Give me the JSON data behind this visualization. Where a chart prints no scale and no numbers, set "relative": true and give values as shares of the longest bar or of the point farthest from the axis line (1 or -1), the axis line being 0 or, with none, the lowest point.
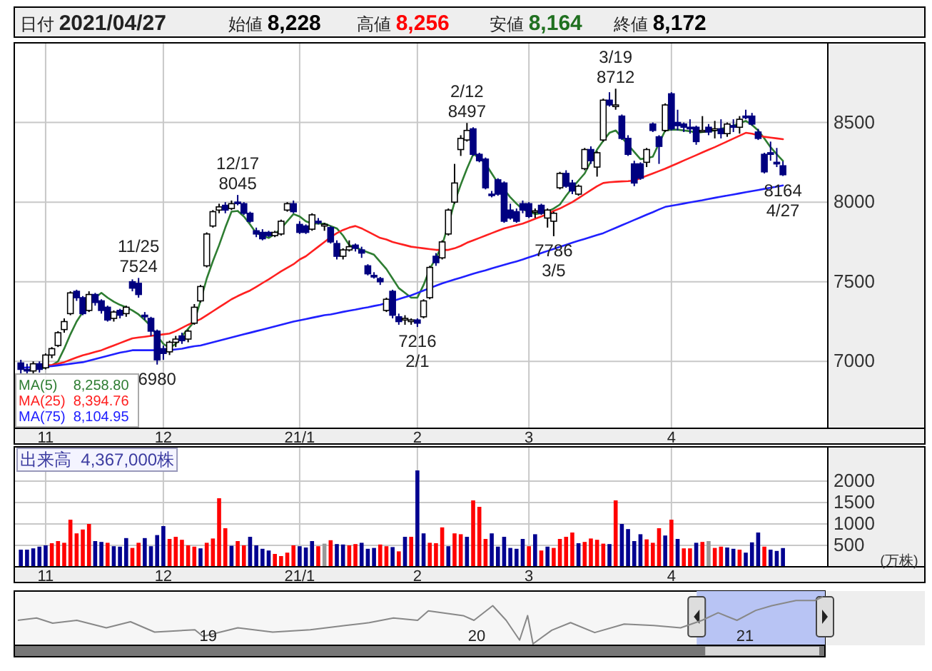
{
  "chart_data": [
    {
      "type": "candlestick",
      "annotations": [
        "日付 2021/04/27",
        "始値 8,228",
        "高値 8,256",
        "安値 8,164",
        "終値 8,172",
        {
          "text": "11/25\n7524",
          "y": 7524
        },
        {
          "text": "6980",
          "y": 6980
        },
        {
          "text": "12/17\n8045",
          "y": 8045
        },
        {
          "text": "7216\n2/1",
          "y": 7216
        },
        {
          "text": "2/12\n8497",
          "y": 8497
        },
        {
          "text": "7786\n3/5",
          "y": 7786
        },
        {
          "text": "3/19\n8712",
          "y": 8712
        },
        {
          "text": "8164\n4/27",
          "y": 8164
        }
      ],
      "categories": [
        null,
        null,
        null,
        null,
        "11",
        null,
        null,
        null,
        null,
        null,
        null,
        null,
        null,
        null,
        null,
        null,
        null,
        null,
        null,
        null,
        null,
        null,
        null,
        "12",
        null,
        null,
        null,
        null,
        null,
        null,
        null,
        null,
        null,
        null,
        null,
        null,
        null,
        null,
        null,
        null,
        null,
        null,
        null,
        null,
        null,
        "21/1",
        null,
        null,
        null,
        null,
        null,
        null,
        null,
        null,
        null,
        null,
        null,
        null,
        null,
        null,
        null,
        null,
        null,
        null,
        "2",
        null,
        null,
        null,
        null,
        null,
        null,
        null,
        null,
        null,
        null,
        null,
        null,
        null,
        null,
        null,
        null,
        null,
        "3",
        null,
        null,
        null,
        null,
        null,
        null,
        null,
        null,
        null,
        null,
        null,
        null,
        null,
        null,
        null,
        null,
        null,
        null,
        null,
        null,
        null,
        null,
        "4",
        null,
        null,
        null,
        null,
        null,
        null,
        null,
        null,
        null,
        null,
        null,
        null,
        null,
        null,
        null,
        null,
        null,
        null
      ],
      "ohlc": [
        [
          6990,
          7010,
          6925,
          6950
        ],
        [
          6950,
          6985,
          6920,
          6940
        ],
        [
          6940,
          7000,
          6925,
          6985
        ],
        [
          6985,
          7000,
          6930,
          6950
        ],
        [
          6960,
          7050,
          6950,
          7040
        ],
        [
          7040,
          7090,
          7020,
          7080
        ],
        [
          7100,
          7190,
          7090,
          7180
        ],
        [
          7200,
          7270,
          7180,
          7250
        ],
        [
          7300,
          7440,
          7290,
          7430
        ],
        [
          7440,
          7450,
          7380,
          7400
        ],
        [
          7400,
          7410,
          7290,
          7300
        ],
        [
          7320,
          7440,
          7310,
          7420
        ],
        [
          7420,
          7430,
          7350,
          7370
        ],
        [
          7380,
          7390,
          7300,
          7320
        ],
        [
          7340,
          7350,
          7250,
          7260
        ],
        [
          7270,
          7320,
          7250,
          7310
        ],
        [
          7320,
          7330,
          7270,
          7290
        ],
        [
          7300,
          7350,
          7280,
          7340
        ],
        [
          7500,
          7515,
          7440,
          7460
        ],
        [
          7490,
          7524,
          7400,
          7420
        ],
        [
          7290,
          7310,
          7260,
          7280
        ],
        [
          7270,
          7280,
          7160,
          7190
        ],
        [
          7190,
          7200,
          6980,
          7010
        ],
        [
          7080,
          7100,
          7010,
          7050
        ],
        [
          7060,
          7130,
          7040,
          7120
        ],
        [
          7120,
          7160,
          7090,
          7140
        ],
        [
          7160,
          7180,
          7110,
          7130
        ],
        [
          7140,
          7200,
          7120,
          7190
        ],
        [
          7240,
          7360,
          7230,
          7340
        ],
        [
          7380,
          7480,
          7370,
          7470
        ],
        [
          7600,
          7810,
          7590,
          7800
        ],
        [
          7850,
          7950,
          7840,
          7940
        ],
        [
          7950,
          7990,
          7930,
          7970
        ],
        [
          7980,
          8000,
          7930,
          7950
        ],
        [
          7960,
          8010,
          7950,
          7990
        ],
        [
          8000,
          8045,
          7980,
          7995
        ],
        [
          7990,
          8000,
          7920,
          7930
        ],
        [
          7930,
          7940,
          7870,
          7880
        ],
        [
          7820,
          7840,
          7780,
          7800
        ],
        [
          7810,
          7830,
          7760,
          7770
        ],
        [
          7810,
          7820,
          7780,
          7790
        ],
        [
          7790,
          7820,
          7780,
          7810
        ],
        [
          7800,
          7890,
          7790,
          7880
        ],
        [
          7950,
          8000,
          7940,
          7990
        ],
        [
          7990,
          8010,
          7930,
          7940
        ],
        [
          7860,
          7880,
          7800,
          7810
        ],
        [
          7850,
          7860,
          7800,
          7810
        ],
        [
          7830,
          7930,
          7820,
          7920
        ],
        [
          7880,
          7900,
          7860,
          7870
        ],
        [
          7850,
          7870,
          7820,
          7860
        ],
        [
          7840,
          7850,
          7740,
          7750
        ],
        [
          7740,
          7760,
          7640,
          7660
        ],
        [
          7660,
          7710,
          7640,
          7700
        ],
        [
          7700,
          7760,
          7690,
          7720
        ],
        [
          7730,
          7740,
          7690,
          7710
        ],
        [
          7700,
          7720,
          7650,
          7680
        ],
        [
          7600,
          7610,
          7540,
          7550
        ],
        [
          7540,
          7560,
          7520,
          7530
        ],
        [
          7520,
          7530,
          7480,
          7500
        ],
        [
          7320,
          7400,
          7310,
          7390
        ],
        [
          7440,
          7450,
          7270,
          7290
        ],
        [
          7280,
          7300,
          7230,
          7250
        ],
        [
          7260,
          7290,
          7230,
          7270
        ],
        [
          7250,
          7270,
          7230,
          7260
        ],
        [
          7260,
          7270,
          7216,
          7240
        ],
        [
          7280,
          7390,
          7270,
          7380
        ],
        [
          7400,
          7600,
          7390,
          7590
        ],
        [
          7660,
          7680,
          7600,
          7620
        ],
        [
          7650,
          7760,
          7640,
          7750
        ],
        [
          7800,
          7960,
          7790,
          7950
        ],
        [
          8000,
          8240,
          7990,
          8120
        ],
        [
          8330,
          8420,
          8290,
          8400
        ],
        [
          8390,
          8497,
          8380,
          8450
        ],
        [
          8460,
          8470,
          8290,
          8300
        ],
        [
          8300,
          8310,
          8250,
          8260
        ],
        [
          8270,
          8280,
          8080,
          8090
        ],
        [
          8050,
          8070,
          8030,
          8045
        ],
        [
          8140,
          8150,
          8040,
          8050
        ],
        [
          8120,
          8130,
          7870,
          7880
        ],
        [
          7950,
          7990,
          7890,
          7900
        ],
        [
          7940,
          7960,
          7870,
          7880
        ],
        [
          7990,
          8010,
          7930,
          7950
        ],
        [
          7990,
          8000,
          7900,
          7910
        ],
        [
          7940,
          7960,
          7900,
          7945
        ],
        [
          7980,
          7990,
          7920,
          7930
        ],
        [
          7900,
          7960,
          7840,
          7950
        ],
        [
          7880,
          7940,
          7786,
          7930
        ],
        [
          8090,
          8190,
          8080,
          8180
        ],
        [
          8180,
          8200,
          8090,
          8100
        ],
        [
          8120,
          8140,
          8050,
          8070
        ],
        [
          8050,
          8110,
          8040,
          8100
        ],
        [
          8210,
          8340,
          8200,
          8330
        ],
        [
          8330,
          8350,
          8240,
          8260
        ],
        [
          8220,
          8320,
          8160,
          8310
        ],
        [
          8390,
          8650,
          8380,
          8640
        ],
        [
          8640,
          8690,
          8600,
          8610
        ],
        [
          8600,
          8712,
          8580,
          8610
        ],
        [
          8540,
          8550,
          8390,
          8400
        ],
        [
          8400,
          8420,
          8290,
          8300
        ],
        [
          8240,
          8260,
          8100,
          8120
        ],
        [
          8240,
          8250,
          8140,
          8150
        ],
        [
          8250,
          8340,
          8220,
          8330
        ],
        [
          8490,
          8500,
          8440,
          8450
        ],
        [
          8410,
          8420,
          8240,
          8350
        ],
        [
          8450,
          8620,
          8440,
          8610
        ],
        [
          8680,
          8690,
          8450,
          8460
        ],
        [
          8500,
          8580,
          8450,
          8480
        ],
        [
          8490,
          8500,
          8440,
          8470
        ],
        [
          8470,
          8520,
          8430,
          8460
        ],
        [
          8470,
          8480,
          8360,
          8380
        ],
        [
          8450,
          8540,
          8440,
          8450
        ],
        [
          8470,
          8490,
          8420,
          8440
        ],
        [
          8450,
          8510,
          8400,
          8460
        ],
        [
          8460,
          8520,
          8400,
          8430
        ],
        [
          8430,
          8500,
          8410,
          8490
        ],
        [
          8480,
          8520,
          8440,
          8470
        ],
        [
          8470,
          8540,
          8430,
          8520
        ],
        [
          8540,
          8580,
          8520,
          8530
        ],
        [
          8540,
          8560,
          8480,
          8490
        ],
        [
          8440,
          8460,
          8390,
          8400
        ],
        [
          8300,
          8310,
          8180,
          8190
        ],
        [
          8310,
          8380,
          8260,
          8300
        ],
        [
          8250,
          8340,
          8220,
          8240
        ],
        [
          8228,
          8256,
          8164,
          8172
        ]
      ],
      "series": [
        {
          "name": "MA(5)    8,258.80",
          "type": "line",
          "color": "#2e7d32",
          "values": [
            null,
            null,
            6955,
            6955,
            6960,
            6975,
            7000,
            7080,
            7170,
            7250,
            7310,
            7360,
            7400,
            7430,
            7400,
            7375,
            7355,
            7340,
            7320,
            7295,
            7260,
            7220,
            7160,
            7110,
            7085,
            7110,
            7160,
            7205,
            7250,
            7380,
            7520,
            7630,
            7730,
            7840,
            7940,
            7945,
            7910,
            7860,
            7805,
            7790,
            7775,
            7800,
            7835,
            7880,
            7925,
            7910,
            7880,
            7865,
            7865,
            7865,
            7850,
            7835,
            7790,
            7730,
            7715,
            7700,
            7685,
            7670,
            7625,
            7580,
            7520,
            7460,
            7430,
            7400,
            7400,
            7480,
            7580,
            7650,
            7730,
            7860,
            8000,
            8110,
            8210,
            8300,
            8280,
            8240,
            8180,
            8120,
            8080,
            8030,
            7990,
            7955,
            7940,
            7925,
            7930,
            7940,
            7960,
            7985,
            8040,
            8090,
            8135,
            8180,
            8255,
            8330,
            8385,
            8435,
            8450,
            8405,
            8360,
            8315,
            8270,
            8275,
            8285,
            8370,
            8450,
            8455,
            8455,
            8450,
            8445,
            8435,
            8440,
            8445,
            8450,
            8460,
            8470,
            8480,
            8495,
            8510,
            8485,
            8450,
            8400,
            8345,
            8300,
            8259
          ]
        },
        {
          "name": "MA(25)  8,394.76",
          "type": "line",
          "color": "#ff2020",
          "values": [
            null,
            null,
            null,
            null,
            6975,
            6978,
            6985,
            6995,
            7010,
            7025,
            7038,
            7048,
            7060,
            7070,
            7085,
            7100,
            7115,
            7130,
            7145,
            7150,
            7155,
            7160,
            7165,
            7170,
            7175,
            7190,
            7210,
            7230,
            7248,
            7265,
            7290,
            7315,
            7340,
            7365,
            7390,
            7410,
            7428,
            7445,
            7468,
            7492,
            7515,
            7540,
            7565,
            7588,
            7610,
            7640,
            7660,
            7690,
            7720,
            7750,
            7780,
            7805,
            7825,
            7840,
            7850,
            7835,
            7815,
            7795,
            7775,
            7765,
            7750,
            7740,
            7730,
            7720,
            7715,
            7710,
            7705,
            7700,
            7700,
            7700,
            7710,
            7725,
            7745,
            7760,
            7775,
            7790,
            7805,
            7820,
            7835,
            7845,
            7855,
            7865,
            7880,
            7895,
            7910,
            7925,
            7945,
            7960,
            7980,
            8000,
            8025,
            8050,
            8075,
            8100,
            8120,
            8125,
            8128,
            8130,
            8132,
            8135,
            8150,
            8165,
            8180,
            8195,
            8210,
            8227,
            8244,
            8261,
            8278,
            8295,
            8312,
            8329,
            8345,
            8363,
            8381,
            8399,
            8417,
            8435,
            8430,
            8420,
            8410,
            8405,
            8400,
            8395
          ]
        },
        {
          "name": "MA(75)  8,104.95",
          "type": "line",
          "color": "#2020ff",
          "values": [
            6960,
            6962,
            6964,
            6966,
            6968,
            6970,
            6975,
            6980,
            6985,
            6990,
            6995,
            7005,
            7015,
            7025,
            7035,
            7045,
            7055,
            7062,
            7070,
            7070,
            7070,
            7070,
            7070,
            7070,
            7070,
            7075,
            7080,
            7088,
            7095,
            7100,
            7110,
            7120,
            7130,
            7140,
            7150,
            7160,
            7170,
            7180,
            7190,
            7200,
            7210,
            7220,
            7230,
            7240,
            7250,
            7258,
            7266,
            7274,
            7282,
            7290,
            7295,
            7303,
            7311,
            7318,
            7325,
            7333,
            7340,
            7348,
            7355,
            7367,
            7379,
            7391,
            7403,
            7415,
            7430,
            7445,
            7460,
            7475,
            7490,
            7502,
            7514,
            7526,
            7538,
            7550,
            7561,
            7572,
            7584,
            7595,
            7606,
            7617,
            7628,
            7640,
            7653,
            7666,
            7680,
            7693,
            7706,
            7719,
            7732,
            7745,
            7757,
            7769,
            7781,
            7793,
            7805,
            7822,
            7838,
            7855,
            7871,
            7888,
            7904,
            7921,
            7937,
            7954,
            7970,
            7977,
            7984,
            7991,
            7998,
            8005,
            8012,
            8020,
            8027,
            8034,
            8041,
            8048,
            8055,
            8062,
            8069,
            8076,
            8083,
            8090,
            8097,
            8105
          ]
        }
      ],
      "ylim": [
        6580,
        9000
      ],
      "yticks": [
        7000,
        7500,
        8000,
        8500
      ],
      "grid": true,
      "legend": "bottom left"
    },
    {
      "type": "bar",
      "annotations": [
        "出来高  4,367,000株"
      ],
      "ylabel": "(万株)",
      "categories": [
        null,
        null,
        null,
        null,
        "11",
        null,
        null,
        null,
        null,
        null,
        null,
        null,
        null,
        null,
        null,
        null,
        null,
        null,
        null,
        null,
        null,
        null,
        null,
        "12",
        null,
        null,
        null,
        null,
        null,
        null,
        null,
        null,
        null,
        null,
        null,
        null,
        null,
        null,
        null,
        null,
        null,
        null,
        null,
        null,
        null,
        "21/1",
        null,
        null,
        null,
        null,
        null,
        null,
        null,
        null,
        null,
        null,
        null,
        null,
        null,
        null,
        null,
        null,
        null,
        null,
        "2",
        null,
        null,
        null,
        null,
        null,
        null,
        null,
        null,
        null,
        null,
        null,
        null,
        null,
        null,
        null,
        null,
        null,
        "3",
        null,
        null,
        null,
        null,
        null,
        null,
        null,
        null,
        null,
        null,
        null,
        null,
        null,
        null,
        null,
        null,
        null,
        null,
        null,
        null,
        null,
        null,
        "4",
        null,
        null,
        null,
        null,
        null,
        null,
        null,
        null,
        null,
        null,
        null,
        null,
        null,
        null,
        null,
        null,
        null,
        null
      ],
      "values": [
        400,
        400,
        430,
        470,
        500,
        550,
        600,
        560,
        1100,
        780,
        870,
        1000,
        600,
        580,
        560,
        480,
        470,
        670,
        440,
        560,
        670,
        480,
        740,
        950,
        650,
        700,
        630,
        500,
        470,
        430,
        560,
        660,
        1600,
        900,
        490,
        600,
        500,
        700,
        500,
        420,
        380,
        300,
        250,
        330,
        500,
        480,
        450,
        600,
        480,
        540,
        620,
        530,
        520,
        500,
        530,
        560,
        420,
        440,
        520,
        480,
        460,
        360,
        700,
        700,
        2250,
        780,
        560,
        550,
        920,
        480,
        780,
        760,
        700,
        1550,
        1400,
        650,
        780,
        470,
        700,
        440,
        420,
        650,
        480,
        760,
        380,
        470,
        440,
        650,
        700,
        800,
        550,
        580,
        660,
        630,
        540,
        530,
        1550,
        1000,
        880,
        600,
        760,
        640,
        560,
        900,
        730,
        1100,
        650,
        430,
        430,
        560,
        580,
        600,
        440,
        470,
        450,
        420,
        400,
        330,
        570,
        800,
        470,
        400,
        370,
        437
      ],
      "colors": [
        "#000090",
        "#000090",
        "#000090",
        "#000090",
        "#000090",
        "#ff0000",
        "#ff0000",
        "#ff0000",
        "#ff0000",
        "#ff0000",
        "#ff0000",
        "#ff0000",
        "#000090",
        "#000090",
        "#ff0000",
        "#000090",
        "#000090",
        "#000090",
        "#ff0000",
        "#ff0000",
        "#000090",
        "#000090",
        "#000090",
        "#000090",
        "#ff0000",
        "#ff0000",
        "#ff0000",
        "#ff0000",
        "#ff0000",
        "#000090",
        "#ff0000",
        "#ff0000",
        "#ff0000",
        "#ff0000",
        "#000090",
        "#ff0000",
        "#ff0000",
        "#000090",
        "#000090",
        "#000090",
        "#000090",
        "#ff0000",
        "#ff0000",
        "#ff0000",
        "#ff0000",
        "#000090",
        "#000090",
        "#000090",
        "#ff0000",
        "#999999",
        "#ff0000",
        "#000090",
        "#000090",
        "#ff0000",
        "#ff0000",
        "#000090",
        "#000090",
        "#000090",
        "#ff0000",
        "#ff0000",
        "#000090",
        "#ff0000",
        "#000090",
        "#ff0000",
        "#000090",
        "#000090",
        "#ff0000",
        "#ff0000",
        "#ff0000",
        "#000090",
        "#ff0000",
        "#ff0000",
        "#000090",
        "#ff0000",
        "#ff0000",
        "#ff0000",
        "#000090",
        "#000090",
        "#000090",
        "#000090",
        "#000090",
        "#000090",
        "#ff0000",
        "#000090",
        "#ff0000",
        "#000090",
        "#ff0000",
        "#ff0000",
        "#ff0000",
        "#ff0000",
        "#000090",
        "#ff0000",
        "#ff0000",
        "#ff0000",
        "#ff0000",
        "#000090",
        "#ff0000",
        "#000090",
        "#000090",
        "#000090",
        "#000090",
        "#ff0000",
        "#ff0000",
        "#ff0000",
        "#000090",
        "#ff0000",
        "#000090",
        "#ff0000",
        "#ff0000",
        "#000090",
        "#ff0000",
        "#999999",
        "#ff0000",
        "#ff0000",
        "#000090",
        "#000090",
        "#ff0000",
        "#000090",
        "#000090",
        "#000090",
        "#ff0000",
        "#000090",
        "#000090",
        "#000090"
      ],
      "ylim": [
        0,
        2800
      ],
      "yticks": [
        500,
        1000,
        1500,
        2000
      ],
      "grid": true
    },
    {
      "type": "line",
      "relative": true,
      "tick_labels": "x",
      "color": "#888888",
      "x": [
        2018.29,
        2018.36,
        2018.42,
        2018.51,
        2018.62,
        2018.71,
        2018.8,
        2018.95,
        2018.98,
        2019.11,
        2019.24,
        2019.38,
        2019.51,
        2019.6,
        2019.69,
        2019.78,
        2019.82,
        2019.95,
        2019.99,
        2020.06,
        2020.11,
        2020.16,
        2020.19,
        2020.21,
        2020.28,
        2020.35,
        2020.44,
        2020.55,
        2020.66,
        2020.76,
        2020.84,
        2020.9,
        2020.97,
        2021.04,
        2021.1,
        2021.19,
        2021.26,
        2021.29
      ],
      "values": [
        0.5,
        0.55,
        0.44,
        0.5,
        0.34,
        0.47,
        0.25,
        0.3,
        0.16,
        0.34,
        0.25,
        0.3,
        0.39,
        0.45,
        0.55,
        0.5,
        0.7,
        0.6,
        0.5,
        0.81,
        0.5,
        0.08,
        0.6,
        0,
        0.29,
        0.45,
        0.24,
        0.42,
        0.39,
        0.34,
        0.5,
        0.66,
        0.5,
        0.71,
        0.81,
        0.92,
        0.92,
        1
      ],
      "xlim": [
        2018.277,
        2021.298
      ],
      "xticks": [
        {
          "value": 2019,
          "label": "19"
        },
        {
          "value": 2020,
          "label": "20"
        },
        {
          "value": 2021,
          "label": "21"
        }
      ],
      "bands": [
        {
          "axis": "x",
          "from": 2020.82,
          "to": 2021.298,
          "color": "#b8c4f4"
        }
      ]
    }
  ]
}
